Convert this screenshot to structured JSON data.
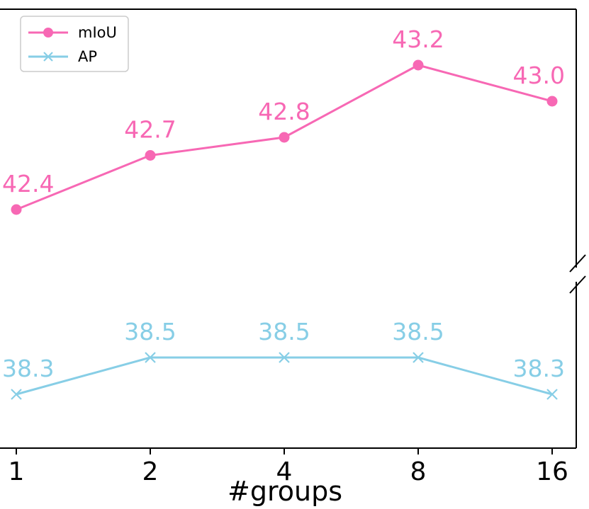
{
  "chart_data": {
    "type": "line",
    "categories": [
      "1",
      "2",
      "4",
      "8",
      "16"
    ],
    "xlabel": "#groups",
    "ylabel": "",
    "broken_y_axis": true,
    "grid": false,
    "legend_position": "top-left",
    "series": [
      {
        "name": "mIoU",
        "values": [
          42.4,
          42.7,
          42.8,
          43.2,
          43.0
        ],
        "labels": [
          "42.4",
          "42.7",
          "42.8",
          "43.2",
          "43.0"
        ],
        "color": "#f768b4",
        "marker": "circle"
      },
      {
        "name": "AP",
        "values": [
          38.3,
          38.5,
          38.5,
          38.5,
          38.3
        ],
        "labels": [
          "38.3",
          "38.5",
          "38.5",
          "38.5",
          "38.3"
        ],
        "color": "#87cee6",
        "marker": "x"
      }
    ]
  }
}
